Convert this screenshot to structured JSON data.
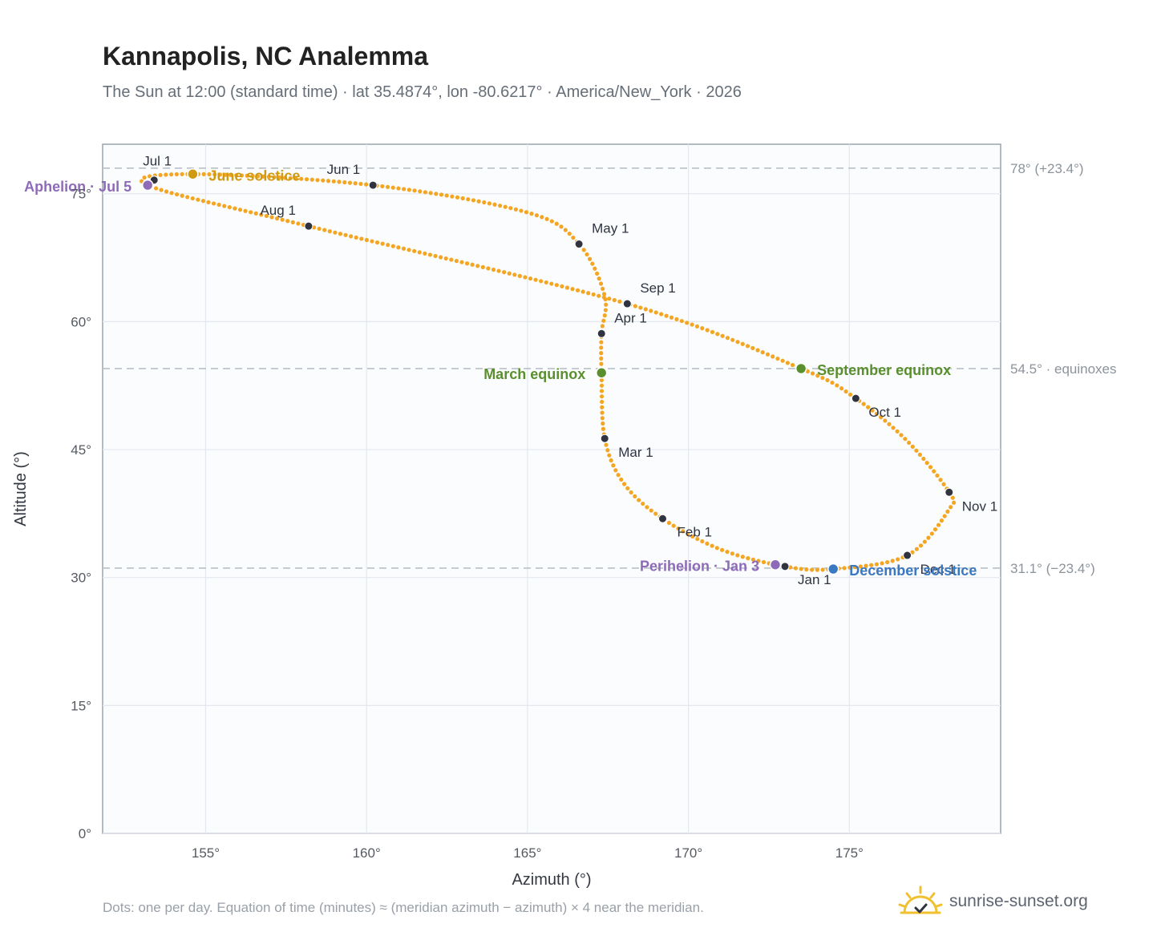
{
  "header": {
    "title": "Kannapolis, NC Analemma",
    "subtitle": "The Sun at 12:00 (standard time) · lat 35.4874°, lon -80.6217° · America/New_York · 2026"
  },
  "footer": {
    "note": "Dots: one per day. Equation of time (minutes) ≈ (meridian azimuth − azimuth) × 4 near the meridian.",
    "brand": "sunrise-sunset.org"
  },
  "colors": {
    "curve": "#f4a623",
    "month_marker": "#2f3440",
    "solstice_june": "#d09a12",
    "equinox": "#5a8f2e",
    "solstice_december": "#3a78c2",
    "apsis": "#8e6bb8",
    "brand_sun": "#f0c030"
  },
  "chart_data": {
    "type": "scatter",
    "xlabel": "Azimuth (°)",
    "ylabel": "Altitude (°)",
    "xlim": [
      151.8,
      179.7
    ],
    "ylim": [
      0,
      80.8
    ],
    "xticks": [
      155,
      160,
      165,
      170,
      175
    ],
    "yticks": [
      0,
      15,
      30,
      45,
      60,
      75
    ],
    "xtick_labels": [
      "155°",
      "160°",
      "165°",
      "170°",
      "175°"
    ],
    "ytick_labels": [
      "0°",
      "15°",
      "30°",
      "45°",
      "60°",
      "75°"
    ],
    "grid": true,
    "reference_lines": [
      {
        "altitude": 78.0,
        "label": "78° (+23.4°)"
      },
      {
        "altitude": 54.5,
        "label": "54.5° · equinoxes"
      },
      {
        "altitude": 31.1,
        "label": "31.1° (−23.4°)"
      }
    ],
    "monthly_points": [
      {
        "label": "Jan 1",
        "az": 173.0,
        "alt": 31.3
      },
      {
        "label": "Feb 1",
        "az": 169.2,
        "alt": 36.9
      },
      {
        "label": "Mar 1",
        "az": 167.4,
        "alt": 46.3
      },
      {
        "label": "Apr 1",
        "az": 167.3,
        "alt": 58.6
      },
      {
        "label": "May 1",
        "az": 166.6,
        "alt": 69.1
      },
      {
        "label": "Jun 1",
        "az": 160.2,
        "alt": 76.0
      },
      {
        "label": "Jul 1",
        "az": 153.4,
        "alt": 76.6
      },
      {
        "label": "Aug 1",
        "az": 158.2,
        "alt": 71.2
      },
      {
        "label": "Sep 1",
        "az": 168.1,
        "alt": 62.1
      },
      {
        "label": "Oct 1",
        "az": 175.2,
        "alt": 51.0
      },
      {
        "label": "Nov 1",
        "az": 178.1,
        "alt": 40.0
      },
      {
        "label": "Dec 1",
        "az": 176.8,
        "alt": 32.6
      }
    ],
    "events": [
      {
        "label": "June solstice",
        "az": 154.6,
        "alt": 77.3,
        "color_key": "solstice_june"
      },
      {
        "label": "Aphelion · Jul 5",
        "az": 153.2,
        "alt": 76.0,
        "color_key": "apsis"
      },
      {
        "label": "March equinox",
        "az": 167.3,
        "alt": 54.0,
        "color_key": "equinox"
      },
      {
        "label": "September equinox",
        "az": 173.5,
        "alt": 54.5,
        "color_key": "equinox"
      },
      {
        "label": "Perihelion · Jan 3",
        "az": 172.7,
        "alt": 31.5,
        "color_key": "apsis"
      },
      {
        "label": "December solstice",
        "az": 174.5,
        "alt": 31.0,
        "color_key": "solstice_december"
      }
    ],
    "curve_control_points": [
      {
        "az": 173.0,
        "alt": 31.3
      },
      {
        "az": 174.5,
        "alt": 31.0
      },
      {
        "az": 176.8,
        "alt": 32.6
      },
      {
        "az": 178.1,
        "alt": 38.0
      },
      {
        "az": 178.1,
        "alt": 40.0
      },
      {
        "az": 176.8,
        "alt": 46.0
      },
      {
        "az": 175.2,
        "alt": 51.0
      },
      {
        "az": 173.5,
        "alt": 54.5
      },
      {
        "az": 168.1,
        "alt": 62.1
      },
      {
        "az": 158.2,
        "alt": 71.2
      },
      {
        "az": 153.2,
        "alt": 76.0
      },
      {
        "az": 154.6,
        "alt": 77.3
      },
      {
        "az": 160.2,
        "alt": 76.0
      },
      {
        "az": 165.0,
        "alt": 72.8
      },
      {
        "az": 166.6,
        "alt": 69.1
      },
      {
        "az": 167.4,
        "alt": 63.0
      },
      {
        "az": 167.3,
        "alt": 58.6
      },
      {
        "az": 167.3,
        "alt": 54.0
      },
      {
        "az": 167.4,
        "alt": 46.3
      },
      {
        "az": 168.0,
        "alt": 41.0
      },
      {
        "az": 169.2,
        "alt": 36.9
      },
      {
        "az": 171.0,
        "alt": 33.3
      },
      {
        "az": 173.0,
        "alt": 31.3
      }
    ]
  }
}
